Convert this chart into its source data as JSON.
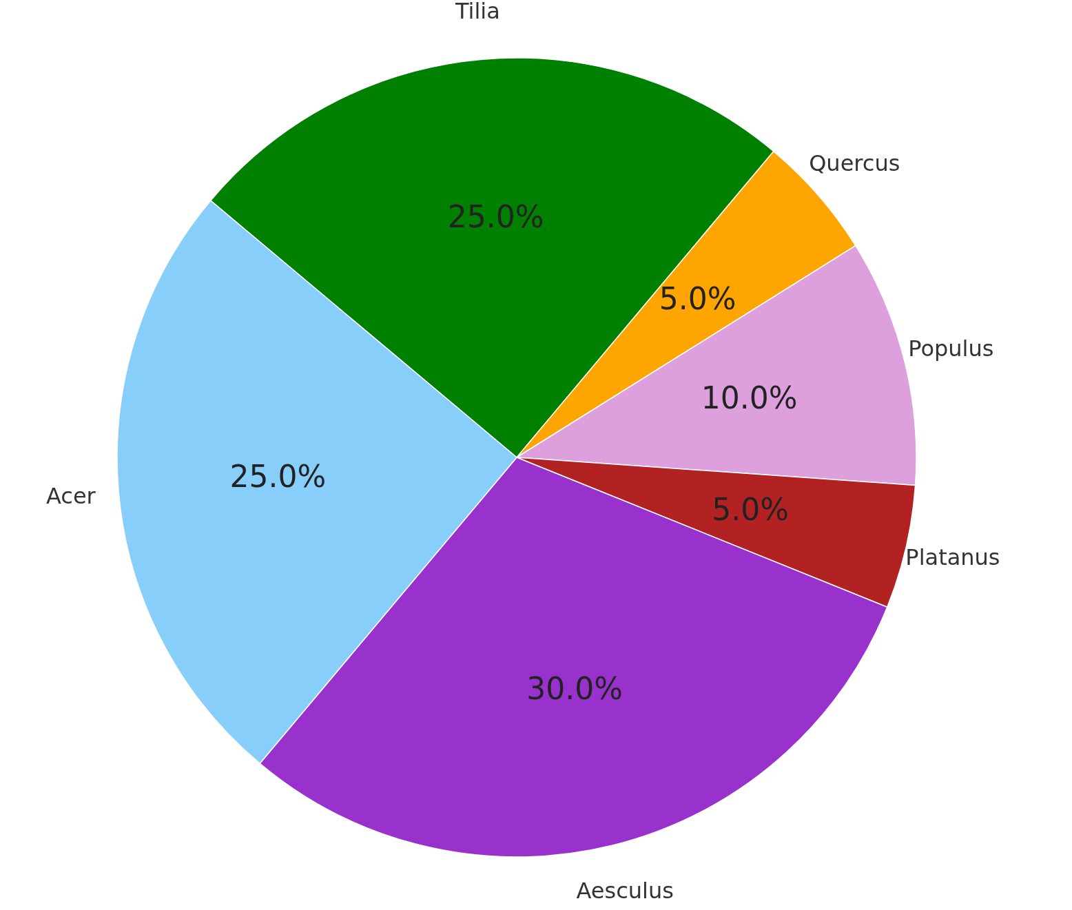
{
  "chart_data": {
    "type": "pie",
    "categories": [
      "Tilia",
      "Quercus",
      "Populus",
      "Platanus",
      "Aesculus",
      "Acer"
    ],
    "values": [
      25,
      5,
      10,
      5,
      30,
      25
    ],
    "colors": [
      "#008000",
      "#ffa500",
      "#dda0dd",
      "#b22222",
      "#9932cc",
      "#87cefa"
    ],
    "value_labels": [
      "25.0%",
      "5.0%",
      "10.0%",
      "5.0%",
      "30.0%",
      "25.0%"
    ]
  }
}
